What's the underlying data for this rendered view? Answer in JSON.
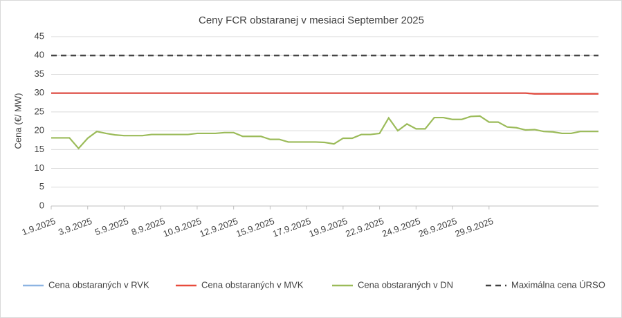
{
  "chart_data": {
    "type": "line",
    "title": "Ceny FCR obstaranej v mesiaci September 2025",
    "y_label": "Cena (€/ MW)",
    "categories": [
      "1.9.2025",
      null,
      null,
      null,
      "3.9.2025",
      null,
      null,
      null,
      "5.9.2025",
      null,
      null,
      null,
      "8.9.2025",
      null,
      null,
      null,
      "10.9.2025",
      null,
      null,
      null,
      "12.9.2025",
      null,
      null,
      null,
      "15.9.2025",
      null,
      null,
      null,
      "17.9.2025",
      null,
      null,
      null,
      "19.9.2025",
      null,
      null,
      null,
      "22.9.2025",
      null,
      null,
      null,
      "24.9.2025",
      null,
      null,
      null,
      "26.9.2025",
      null,
      null,
      null,
      "29.9.2025",
      null,
      null,
      null,
      null,
      null,
      null,
      null,
      null,
      null,
      null,
      null,
      null
    ],
    "series": [
      {
        "name": "Cena obstaraných v RVK",
        "color": "#8db4e2",
        "style": "solid",
        "values": [
          30,
          30,
          30,
          30,
          30,
          30,
          30,
          30,
          30,
          30,
          30,
          30,
          30,
          30,
          30,
          30,
          30,
          30,
          30,
          30,
          30,
          30,
          30,
          30,
          30,
          30,
          30,
          30,
          30,
          30,
          30,
          30,
          30,
          30,
          30,
          30,
          30,
          30,
          30,
          30,
          30,
          30,
          30,
          30,
          30,
          30,
          30,
          30,
          30,
          30,
          30,
          30,
          30,
          29.8,
          29.8,
          29.8,
          29.8,
          29.8,
          29.8,
          29.8,
          29.8
        ]
      },
      {
        "name": "Cena obstaraných v MVK",
        "color": "#e84b3c",
        "style": "solid",
        "values": [
          30,
          30,
          30,
          30,
          30,
          30,
          30,
          30,
          30,
          30,
          30,
          30,
          30,
          30,
          30,
          30,
          30,
          30,
          30,
          30,
          30,
          30,
          30,
          30,
          30,
          30,
          30,
          30,
          30,
          30,
          30,
          30,
          30,
          30,
          30,
          30,
          30,
          30,
          30,
          30,
          30,
          30,
          30,
          30,
          30,
          30,
          30,
          30,
          30,
          30,
          30,
          30,
          30,
          29.8,
          29.8,
          29.8,
          29.8,
          29.8,
          29.8,
          29.8,
          29.8
        ]
      },
      {
        "name": "Cena obstaraných v DN",
        "color": "#9bbb59",
        "style": "solid",
        "values": [
          18.1,
          18.1,
          18.1,
          15.3,
          18,
          19.8,
          19.3,
          18.9,
          18.7,
          18.7,
          18.7,
          19,
          19,
          19,
          19,
          19,
          19.3,
          19.3,
          19.3,
          19.5,
          19.5,
          18.5,
          18.5,
          18.5,
          17.7,
          17.7,
          17,
          17,
          17,
          17,
          16.9,
          16.5,
          18,
          18,
          19,
          19,
          19.3,
          23.4,
          20,
          21.8,
          20.5,
          20.5,
          23.5,
          23.5,
          23,
          23,
          23.8,
          23.9,
          22.3,
          22.3,
          21,
          20.8,
          20.2,
          20.3,
          19.8,
          19.7,
          19.3,
          19.3,
          19.8,
          19.8,
          19.8
        ]
      },
      {
        "name": "Maximálna cena ÚRSO",
        "color": "#404040",
        "style": "dashed",
        "values": [
          40,
          40,
          40,
          40,
          40,
          40,
          40,
          40,
          40,
          40,
          40,
          40,
          40,
          40,
          40,
          40,
          40,
          40,
          40,
          40,
          40,
          40,
          40,
          40,
          40,
          40,
          40,
          40,
          40,
          40,
          40,
          40,
          40,
          40,
          40,
          40,
          40,
          40,
          40,
          40,
          40,
          40,
          40,
          40,
          40,
          40,
          40,
          40,
          40,
          40,
          40,
          40,
          40,
          40,
          40,
          40,
          40,
          40,
          40,
          40,
          40
        ]
      }
    ],
    "ylim": [
      0,
      45
    ],
    "yticks": [
      0,
      5,
      10,
      15,
      20,
      25,
      30,
      35,
      40,
      45
    ],
    "grid": true
  }
}
